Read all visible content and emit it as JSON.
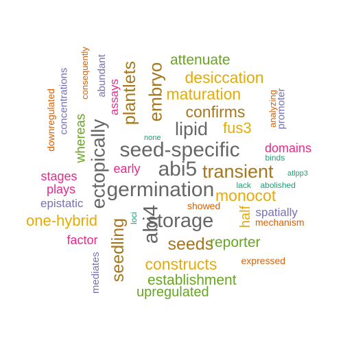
{
  "palette": {
    "green": "#66a61e",
    "orange": "#d95f02",
    "purple": "#7570b3",
    "magenta": "#e7298a",
    "teal": "#1b9e77",
    "mustard": "#e6ab02",
    "brown": "#a6761d",
    "gray": "#666666"
  },
  "words": [
    {
      "text": "seed-specific",
      "color": "gray"
    },
    {
      "text": "germination",
      "color": "gray"
    },
    {
      "text": "storage",
      "color": "gray"
    },
    {
      "text": "abi5",
      "color": "gray"
    },
    {
      "text": "abi4",
      "color": "gray"
    },
    {
      "text": "lipid",
      "color": "gray"
    },
    {
      "text": "ectopically",
      "color": "gray"
    },
    {
      "text": "transient",
      "color": "brown"
    },
    {
      "text": "embryo",
      "color": "brown"
    },
    {
      "text": "seeds",
      "color": "brown"
    },
    {
      "text": "seedling",
      "color": "brown"
    },
    {
      "text": "plantlets",
      "color": "brown"
    },
    {
      "text": "confirms",
      "color": "brown"
    },
    {
      "text": "maturation",
      "color": "mustard"
    },
    {
      "text": "desiccation",
      "color": "mustard"
    },
    {
      "text": "constructs",
      "color": "mustard"
    },
    {
      "text": "monocot",
      "color": "mustard"
    },
    {
      "text": "fus3",
      "color": "mustard"
    },
    {
      "text": "one-hybrid",
      "color": "mustard"
    },
    {
      "text": "half",
      "color": "mustard"
    },
    {
      "text": "establishment",
      "color": "green"
    },
    {
      "text": "reporter",
      "color": "green"
    },
    {
      "text": "attenuate",
      "color": "green"
    },
    {
      "text": "upregulated",
      "color": "green"
    },
    {
      "text": "whereas",
      "color": "green"
    },
    {
      "text": "domains",
      "color": "magenta"
    },
    {
      "text": "stages",
      "color": "magenta"
    },
    {
      "text": "plays",
      "color": "magenta"
    },
    {
      "text": "early",
      "color": "magenta"
    },
    {
      "text": "factor",
      "color": "magenta"
    },
    {
      "text": "assays",
      "color": "magenta"
    },
    {
      "text": "spatially",
      "color": "purple"
    },
    {
      "text": "epistatic",
      "color": "purple"
    },
    {
      "text": "mediates",
      "color": "purple"
    },
    {
      "text": "abundant",
      "color": "purple"
    },
    {
      "text": "concentrations",
      "color": "purple"
    },
    {
      "text": "promoter",
      "color": "purple"
    },
    {
      "text": "downregulated",
      "color": "orange"
    },
    {
      "text": "consequently",
      "color": "orange"
    },
    {
      "text": "analyzing",
      "color": "orange"
    },
    {
      "text": "showed",
      "color": "orange"
    },
    {
      "text": "mechanism",
      "color": "orange"
    },
    {
      "text": "expressed",
      "color": "orange"
    },
    {
      "text": "binds",
      "color": "teal"
    },
    {
      "text": "atlpp3",
      "color": "teal"
    },
    {
      "text": "lack",
      "color": "teal"
    },
    {
      "text": "abolished",
      "color": "teal"
    },
    {
      "text": "loci",
      "color": "teal"
    },
    {
      "text": "none",
      "color": "teal"
    }
  ]
}
